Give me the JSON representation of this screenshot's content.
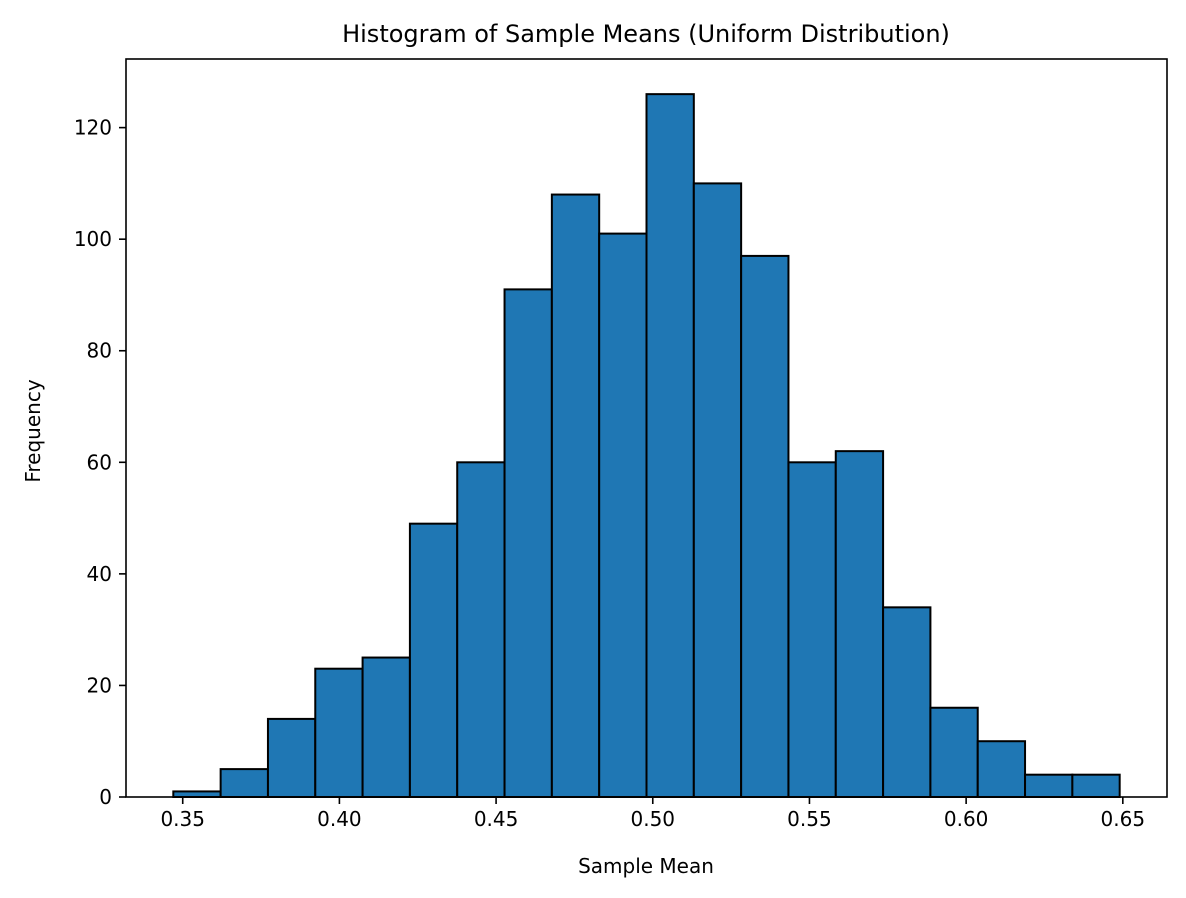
{
  "chart_data": {
    "type": "bar",
    "title": "Histogram of Sample Means (Uniform Distribution)",
    "xlabel": "Sample Mean",
    "ylabel": "Frequency",
    "bin_edges": [
      0.347,
      0.3621,
      0.3772,
      0.3923,
      0.4074,
      0.4225,
      0.4376,
      0.4527,
      0.4678,
      0.4829,
      0.498,
      0.5131,
      0.5282,
      0.5433,
      0.5584,
      0.5735,
      0.5886,
      0.6037,
      0.6188,
      0.6339,
      0.649
    ],
    "values": [
      1,
      5,
      14,
      23,
      25,
      49,
      60,
      91,
      108,
      101,
      126,
      110,
      97,
      60,
      62,
      34,
      16,
      10,
      4,
      4
    ],
    "xlim": [
      0.3319,
      0.6641
    ],
    "ylim": [
      0,
      132.3
    ],
    "x_ticks": [
      0.35,
      0.4,
      0.45,
      0.5,
      0.55,
      0.6,
      0.65
    ],
    "x_tick_labels": [
      "0.35",
      "0.40",
      "0.45",
      "0.50",
      "0.55",
      "0.60",
      "0.65"
    ],
    "y_ticks": [
      0,
      20,
      40,
      60,
      80,
      100,
      120
    ],
    "y_tick_labels": [
      "0",
      "20",
      "40",
      "60",
      "80",
      "100",
      "120"
    ],
    "bar_color": "#1f77b4",
    "edge_color": "#000000",
    "grid": false,
    "legend": "none"
  }
}
